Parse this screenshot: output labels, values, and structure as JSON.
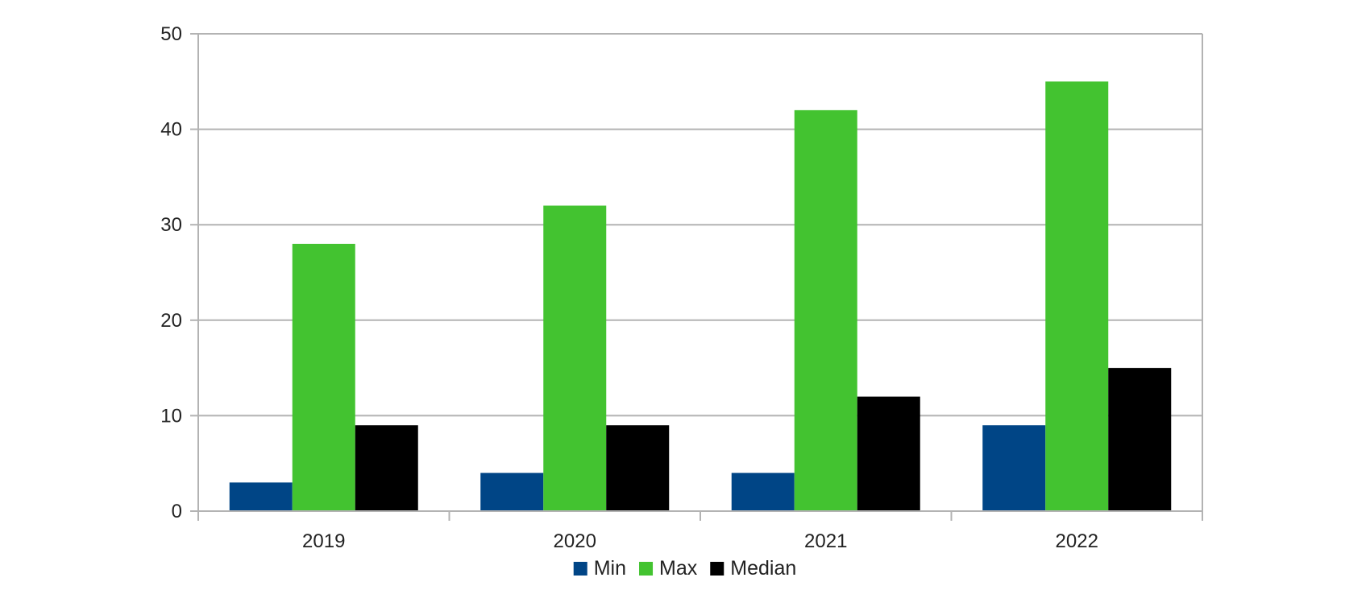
{
  "chart_data": {
    "type": "bar",
    "categories": [
      "2019",
      "2020",
      "2021",
      "2022"
    ],
    "series": [
      {
        "name": "Min",
        "values": [
          3,
          4,
          4,
          9
        ],
        "color": "#004586"
      },
      {
        "name": "Max",
        "values": [
          28,
          32,
          42,
          45
        ],
        "color": "#43c330"
      },
      {
        "name": "Median",
        "values": [
          9,
          9,
          12,
          15
        ],
        "color": "#000000"
      }
    ],
    "y_ticks": [
      "0",
      "10",
      "20",
      "30",
      "40",
      "50"
    ],
    "ylim": [
      0,
      50
    ],
    "title": "",
    "xlabel": "",
    "ylabel": "",
    "grid": true,
    "legend_position": "bottom"
  }
}
